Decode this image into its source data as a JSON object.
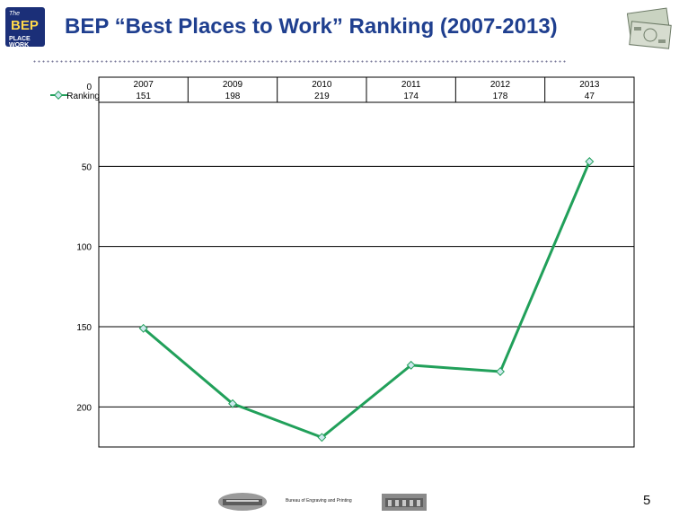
{
  "header": {
    "title": "BEP “Best Places to Work” Ranking (2007-2013)",
    "logo_lines": [
      "The",
      "BEP",
      "PLACE WORK"
    ]
  },
  "footer": {
    "text": "Bureau of Engraving and Printing",
    "page_number": "5"
  },
  "colors": {
    "title": "#1f3f8f",
    "series": "#21a05a",
    "marker_fill": "#cfe8ef",
    "grid": "#000000"
  },
  "chart_data": {
    "type": "line",
    "x": [
      "2007",
      "2009",
      "2010",
      "2011",
      "2012",
      "2013"
    ],
    "series": [
      {
        "name": "Ranking",
        "values": [
          151,
          198,
          219,
          174,
          178,
          47
        ]
      }
    ],
    "y_ticks": [
      "0",
      "50",
      "100",
      "150",
      "200"
    ],
    "y_axis_reversed": true,
    "ylim": [
      0,
      225
    ],
    "grid": true,
    "legend": "left, inline with data table",
    "data_table": true
  }
}
